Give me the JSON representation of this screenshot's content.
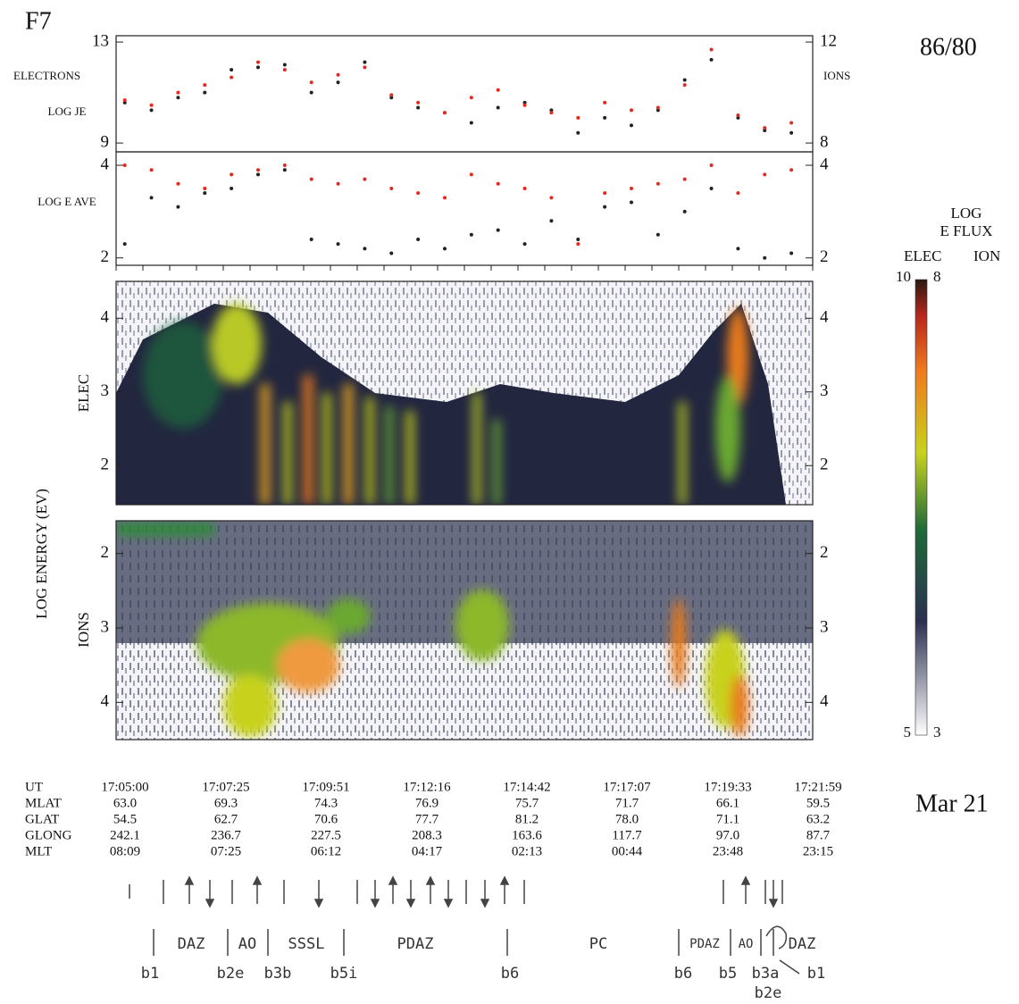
{
  "header": {
    "satellite": "F7",
    "orbit": "86/80",
    "date": "Mar 21",
    "energy_label": "LOG ENERGY (EV)"
  },
  "chart_data": [
    {
      "type": "scatter",
      "y_label": "LOG JE",
      "xlim": [
        -13,
        1032
      ],
      "ylim": [
        8.65,
        13.25
      ],
      "yticks": [
        9,
        13
      ],
      "y2lim": [
        7.65,
        12.25
      ],
      "y2ticks": [
        8,
        12
      ],
      "x": [
        0,
        40,
        80,
        120,
        160,
        200,
        240,
        280,
        320,
        360,
        400,
        440,
        480,
        520,
        560,
        600,
        640,
        680,
        720,
        760,
        800,
        840,
        880,
        920,
        960,
        1000
      ],
      "series": [
        {
          "name": "ELECTRONS",
          "color": "#222222",
          "values": [
            10.6,
            10.3,
            10.8,
            11.0,
            11.9,
            12.0,
            12.1,
            11.0,
            11.4,
            12.2,
            10.8,
            10.4,
            10.2,
            9.8,
            10.4,
            10.6,
            10.3,
            9.4,
            10.0,
            9.7,
            10.3,
            11.5,
            12.3,
            10.0,
            9.5,
            9.4
          ]
        },
        {
          "name": "IONS",
          "color": "#e8281e",
          "axis": "y2",
          "values": [
            9.7,
            9.5,
            10.0,
            10.3,
            10.6,
            11.2,
            10.9,
            10.4,
            10.7,
            11.0,
            9.9,
            9.6,
            9.2,
            9.8,
            10.1,
            9.5,
            9.2,
            9.0,
            9.6,
            9.3,
            9.4,
            10.3,
            11.7,
            9.1,
            8.6,
            8.8
          ]
        }
      ]
    },
    {
      "type": "scatter",
      "y_label": "LOG E AVE",
      "xlim": [
        -13,
        1032
      ],
      "ylim": [
        1.84,
        4.29
      ],
      "yticks": [
        2,
        4
      ],
      "y2lim": [
        1.84,
        4.29
      ],
      "y2ticks": [
        2,
        4
      ],
      "x": [
        0,
        40,
        80,
        120,
        160,
        200,
        240,
        280,
        320,
        360,
        400,
        440,
        480,
        520,
        560,
        600,
        640,
        680,
        720,
        760,
        800,
        840,
        880,
        920,
        960,
        1000
      ],
      "series": [
        {
          "name": "ELECTRONS",
          "color": "#222222",
          "values": [
            2.3,
            3.3,
            3.1,
            3.4,
            3.5,
            3.8,
            3.9,
            2.4,
            2.3,
            2.2,
            2.1,
            2.4,
            2.2,
            2.5,
            2.6,
            2.3,
            2.8,
            2.4,
            3.1,
            3.2,
            2.5,
            3.0,
            3.5,
            2.2,
            2.0,
            2.1
          ]
        },
        {
          "name": "IONS",
          "color": "#e8281e",
          "axis": "y2",
          "values": [
            4.0,
            3.9,
            3.6,
            3.5,
            3.8,
            3.9,
            4.0,
            3.7,
            3.6,
            3.7,
            3.5,
            3.4,
            3.3,
            3.8,
            3.6,
            3.5,
            3.3,
            2.3,
            3.4,
            3.5,
            3.6,
            3.7,
            4.0,
            3.4,
            3.8,
            3.9
          ]
        }
      ]
    },
    {
      "type": "spectrogram",
      "y_label": "ELEC",
      "ylim": [
        1.47,
        4.5
      ],
      "yticks": [
        2,
        3,
        4
      ]
    },
    {
      "type": "spectrogram",
      "y_label": "IONS",
      "ylim": [
        4.5,
        1.56
      ],
      "yticks": [
        2,
        3,
        4
      ]
    }
  ],
  "colorbar": {
    "title": [
      "LOG",
      "E FLUX"
    ],
    "labels": [
      "ELEC",
      "ION"
    ],
    "elec_range": [
      5,
      10
    ],
    "ion_range": [
      3,
      8
    ]
  },
  "ephemeris": {
    "labels": [
      "UT",
      "MLAT",
      "GLAT",
      "GLONG",
      "MLT"
    ],
    "columns": [
      [
        "17:05:00",
        "63.0",
        "54.5",
        "242.1",
        "08:09"
      ],
      [
        "17:07:25",
        "69.3",
        "62.7",
        "236.7",
        "07:25"
      ],
      [
        "17:09:51",
        "74.3",
        "70.6",
        "227.5",
        "06:12"
      ],
      [
        "17:12:16",
        "76.9",
        "77.7",
        "208.3",
        "04:17"
      ],
      [
        "17:14:42",
        "75.7",
        "81.2",
        "163.6",
        "02:13"
      ],
      [
        "17:17:07",
        "71.7",
        "78.0",
        "117.7",
        "00:44"
      ],
      [
        "17:19:33",
        "66.1",
        "71.1",
        "97.0",
        "23:48"
      ],
      [
        "17:21:59",
        "59.5",
        "63.2",
        "87.7",
        "23:15"
      ]
    ]
  },
  "regions": [
    "DAZ",
    "AO",
    "SSSL",
    "PDAZ",
    "PC",
    "PDAZ",
    "AO",
    "DAZ"
  ],
  "boundaries": [
    "b1",
    "b2e",
    "b3b",
    "b5i",
    "b6",
    "b6",
    "b5",
    "b3a",
    "b1",
    "b2e"
  ]
}
